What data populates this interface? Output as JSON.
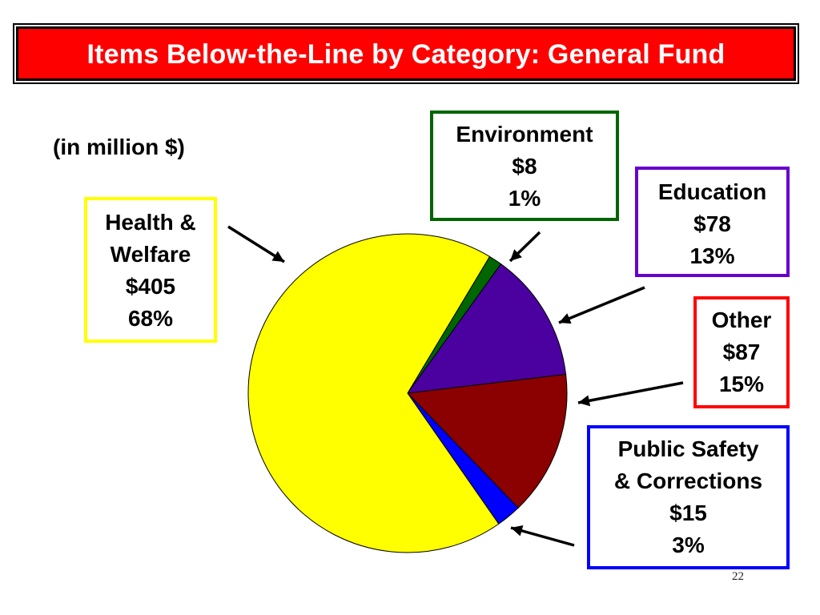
{
  "title": "Items Below-the-Line by Category:  General Fund",
  "subtitle": "(in million $)",
  "page_number": "22",
  "chart_data": {
    "type": "pie",
    "unit": "million $",
    "slices": [
      {
        "name": "Health & Welfare",
        "name_lines": [
          "Health &",
          "Welfare"
        ],
        "amount_label": "$405",
        "percent_label": "68%",
        "value": 405,
        "color": "#ffff00",
        "box_color": "#ffff00"
      },
      {
        "name": "Environment",
        "name_lines": [
          "Environment"
        ],
        "amount_label": "$8",
        "percent_label": "1%",
        "value": 8,
        "color": "#006600",
        "box_color": "#006600"
      },
      {
        "name": "Education",
        "name_lines": [
          "Education"
        ],
        "amount_label": "$78",
        "percent_label": "13%",
        "value": 78,
        "color": "#4b00a0",
        "box_color": "#6600cc"
      },
      {
        "name": "Other",
        "name_lines": [
          "Other"
        ],
        "amount_label": "$87",
        "percent_label": "15%",
        "value": 87,
        "color": "#8b0000",
        "box_color": "#ff0000"
      },
      {
        "name": "Public Safety & Corrections",
        "name_lines": [
          "Public Safety",
          "& Corrections"
        ],
        "amount_label": "$15",
        "percent_label": "3%",
        "value": 15,
        "color": "#0000ff",
        "box_color": "#0000ff"
      }
    ]
  }
}
